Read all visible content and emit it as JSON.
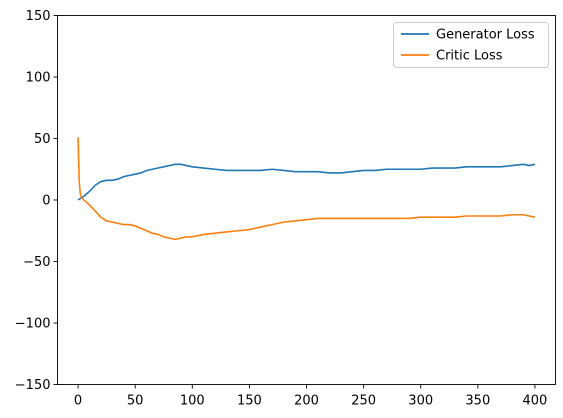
{
  "chart_data": {
    "type": "line",
    "title": "",
    "xlabel": "",
    "ylabel": "",
    "xlim": [
      -18,
      418
    ],
    "ylim": [
      -150,
      150
    ],
    "xticks": [
      0,
      50,
      100,
      150,
      200,
      250,
      300,
      350,
      400
    ],
    "yticks": [
      -150,
      -100,
      -50,
      0,
      50,
      100,
      150
    ],
    "grid": false,
    "legend_placement": "top-right",
    "series": [
      {
        "name": "Generator Loss",
        "color": "#1f77b4",
        "x": [
          0,
          5,
          10,
          15,
          20,
          25,
          30,
          35,
          40,
          45,
          50,
          55,
          60,
          65,
          70,
          75,
          80,
          85,
          90,
          95,
          100,
          110,
          120,
          130,
          140,
          150,
          160,
          170,
          180,
          190,
          200,
          210,
          220,
          230,
          240,
          250,
          260,
          270,
          280,
          290,
          300,
          310,
          320,
          330,
          340,
          350,
          360,
          370,
          380,
          390,
          395,
          400
        ],
        "y": [
          0,
          3,
          7,
          12,
          15,
          16,
          16,
          17,
          19,
          20,
          21,
          22,
          24,
          25,
          26,
          27,
          28,
          29,
          29,
          28,
          27,
          26,
          25,
          24,
          24,
          24,
          24,
          25,
          24,
          23,
          23,
          23,
          22,
          22,
          23,
          24,
          24,
          25,
          25,
          25,
          25,
          26,
          26,
          26,
          27,
          27,
          27,
          27,
          28,
          29,
          28,
          29
        ]
      },
      {
        "name": "Critic Loss",
        "color": "#ff7f0e",
        "x": [
          0,
          1,
          2,
          3,
          5,
          10,
          15,
          20,
          25,
          30,
          35,
          40,
          45,
          50,
          55,
          60,
          65,
          70,
          75,
          80,
          85,
          90,
          95,
          100,
          110,
          120,
          130,
          140,
          150,
          160,
          170,
          180,
          190,
          200,
          210,
          220,
          230,
          240,
          250,
          260,
          270,
          280,
          290,
          300,
          310,
          320,
          330,
          340,
          350,
          360,
          370,
          380,
          390,
          395,
          400
        ],
        "y": [
          51,
          15,
          5,
          2,
          0,
          -4,
          -9,
          -14,
          -17,
          -18,
          -19,
          -20,
          -20,
          -21,
          -23,
          -25,
          -27,
          -28,
          -30,
          -31,
          -32,
          -31,
          -30,
          -30,
          -28,
          -27,
          -26,
          -25,
          -24,
          -22,
          -20,
          -18,
          -17,
          -16,
          -15,
          -15,
          -15,
          -15,
          -15,
          -15,
          -15,
          -15,
          -15,
          -14,
          -14,
          -14,
          -14,
          -13,
          -13,
          -13,
          -13,
          -12,
          -12,
          -13,
          -14
        ]
      }
    ]
  }
}
